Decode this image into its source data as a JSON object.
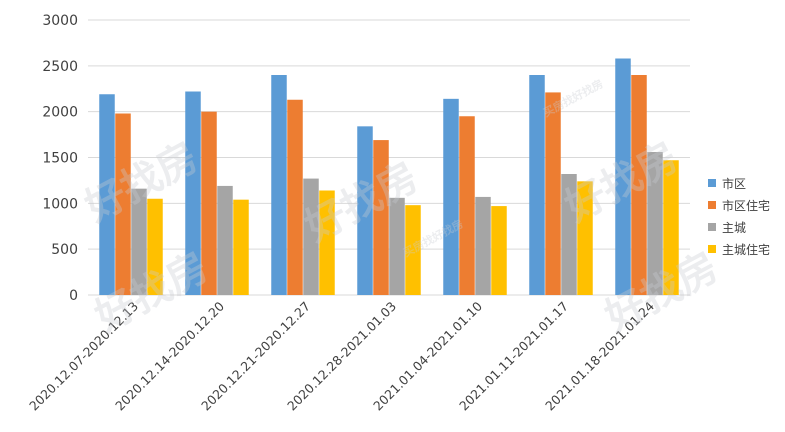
{
  "chart_data": {
    "type": "bar",
    "categories": [
      "2020.12.07-2020.12.13",
      "2020.12.14-2020.12.20",
      "2020.12.21-2020.12.27",
      "2020.12.28-2021.01.03",
      "2021.01.04-2021.01.10",
      "2021.01.11-2021.01.17",
      "2021.01.18-2021.01.24"
    ],
    "series": [
      {
        "name": "市区",
        "color": "#5b9bd5",
        "values": [
          2190,
          2220,
          2400,
          1840,
          2140,
          2400,
          2580
        ]
      },
      {
        "name": "市区住宅",
        "color": "#ed7d31",
        "values": [
          1980,
          2000,
          2130,
          1690,
          1950,
          2210,
          2400
        ]
      },
      {
        "name": "主城",
        "color": "#a5a5a5",
        "values": [
          1160,
          1190,
          1270,
          1060,
          1070,
          1320,
          1560
        ]
      },
      {
        "name": "主城住宅",
        "color": "#ffc000",
        "values": [
          1050,
          1040,
          1140,
          980,
          970,
          1240,
          1470
        ]
      }
    ],
    "ylim": [
      0,
      3000
    ],
    "yticks": [
      "0",
      "500",
      "1000",
      "1500",
      "2000",
      "2500",
      "3000"
    ],
    "grid": true,
    "legend_position": "right",
    "title": "",
    "xlabel": "",
    "ylabel": ""
  },
  "watermark": {
    "text": "好找房",
    "small_text": "买房找好找房"
  }
}
